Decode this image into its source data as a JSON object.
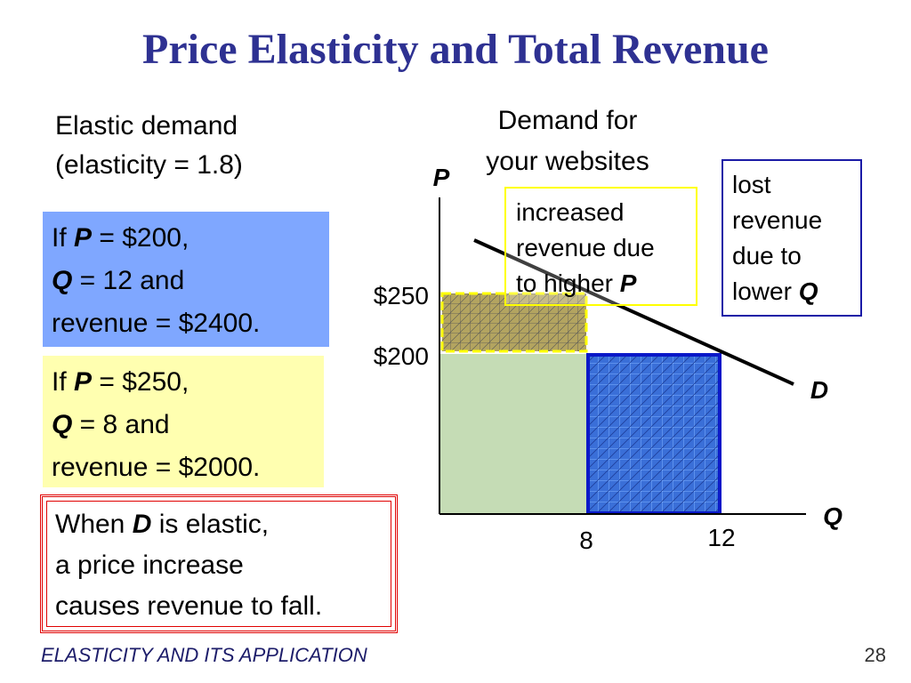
{
  "title": "Price Elasticity and Total Revenue",
  "subheading": {
    "line1": "Elastic demand",
    "line2": "(elasticity = 1.8)"
  },
  "case_200": {
    "if_word": "If",
    "p_sym": "P",
    "p_rest": " = $200,",
    "q_sym": "Q",
    "q_rest": " = 12 and",
    "revenue": "revenue = $2400."
  },
  "case_250": {
    "if_word": "If",
    "p_sym": "P",
    "p_rest": " = $250,",
    "q_sym": "Q",
    "q_rest": " = 8 and",
    "revenue": "revenue = $2000."
  },
  "conclusion": {
    "when": "When ",
    "d_sym": "D",
    "rest1": " is elastic,",
    "line2": "a price increase",
    "line3": "causes revenue to fall."
  },
  "chart": {
    "title_line1": "Demand for",
    "title_line2": "your websites",
    "y_axis_label": "P",
    "x_axis_label": "Q",
    "demand_label": "D",
    "y_ticks": [
      "$250",
      "$200"
    ],
    "x_ticks": [
      "8",
      "12"
    ],
    "gain_callout": {
      "line1": "increased",
      "line2": "revenue due",
      "line3": "to higher ",
      "sym": "P"
    },
    "loss_callout": {
      "line1": "lost",
      "line2": "revenue",
      "line3": "due to",
      "line4": "lower ",
      "sym": "Q"
    }
  },
  "colors": {
    "title": "#2e3192",
    "box_blue": "#7fa7ff",
    "box_yellow": "#ffffb0",
    "revenue_green": "#c5dcb5",
    "gain_fill": "#b3a460",
    "loss_fill": "#3a6fd8",
    "callout_yellow": "#ffff00",
    "callout_blue": "#1a1aa6",
    "conclusion_border": "#e00000"
  },
  "footer": "ELASTICITY AND ITS APPLICATION",
  "page_number": "28"
}
